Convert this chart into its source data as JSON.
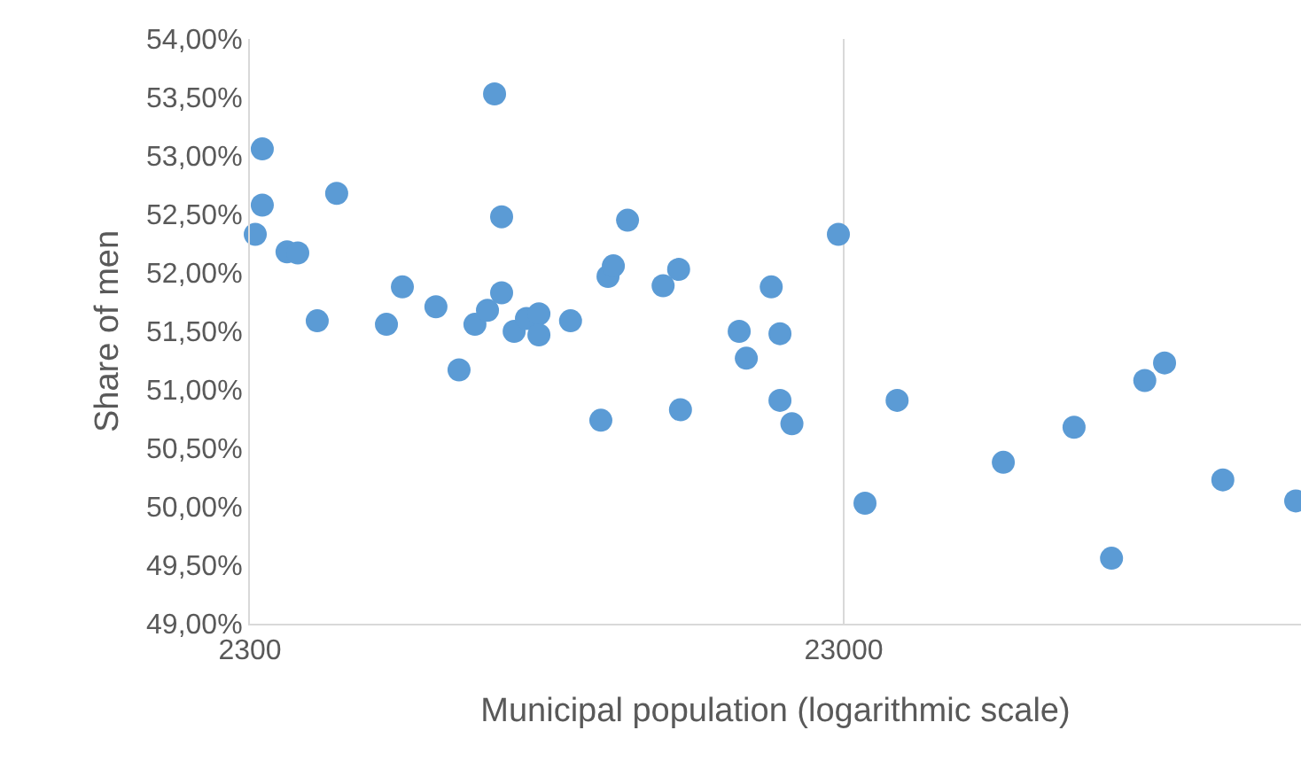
{
  "chart_data": {
    "type": "scatter",
    "xlabel": "Municipal population (logarithmic scale)",
    "ylabel": "Share of men",
    "log": "x",
    "grid": "x",
    "marker": "circle",
    "legend": false,
    "x": [
      2413,
      2413,
      2348,
      2656,
      2769,
      3220,
      2986,
      3905,
      4154,
      4731,
      5175,
      5504,
      5778,
      5939,
      6104,
      6104,
      6408,
      6721,
      7054,
      7054,
      7974,
      8968,
      9221,
      9414,
      9947,
      11417,
      12126,
      12213,
      15336,
      15766,
      17365,
      17963,
      17963,
      18814,
      22529,
      24978,
      28290,
      42711,
      56189,
      64975,
      73922,
      79810,
      100050,
      132710
    ],
    "series": [
      {
        "color": "#5b9bd5",
        "values": [
          53.06,
          52.58,
          52.33,
          52.18,
          52.17,
          52.68,
          51.59,
          51.56,
          51.88,
          51.71,
          51.17,
          51.56,
          51.68,
          53.53,
          52.48,
          51.83,
          51.5,
          51.61,
          51.65,
          51.47,
          51.59,
          50.74,
          51.97,
          52.06,
          52.45,
          51.89,
          52.03,
          50.83,
          51.5,
          51.27,
          51.88,
          51.48,
          50.91,
          50.71,
          52.33,
          50.03,
          50.91,
          50.38,
          50.68,
          49.56,
          51.08,
          51.23,
          50.23,
          50.05
        ]
      }
    ],
    "xlim": [
      2300,
      135470
    ],
    "xticks": [
      2300,
      23000
    ],
    "ylim": [
      49,
      54
    ],
    "yticks": [
      {
        "value": 49,
        "label": "49,00%"
      },
      {
        "value": 49.5,
        "label": "49,50%"
      },
      {
        "value": 50,
        "label": "50,00%"
      },
      {
        "value": 50.5,
        "label": "50,50%"
      },
      {
        "value": 51,
        "label": "51,00%"
      },
      {
        "value": 51.5,
        "label": "51,50%"
      },
      {
        "value": 52,
        "label": "52,00%"
      },
      {
        "value": 52.5,
        "label": "52,50%"
      },
      {
        "value": 53,
        "label": "53,00%"
      },
      {
        "value": 53.5,
        "label": "53,50%"
      },
      {
        "value": 54,
        "label": "54,00%"
      }
    ]
  }
}
